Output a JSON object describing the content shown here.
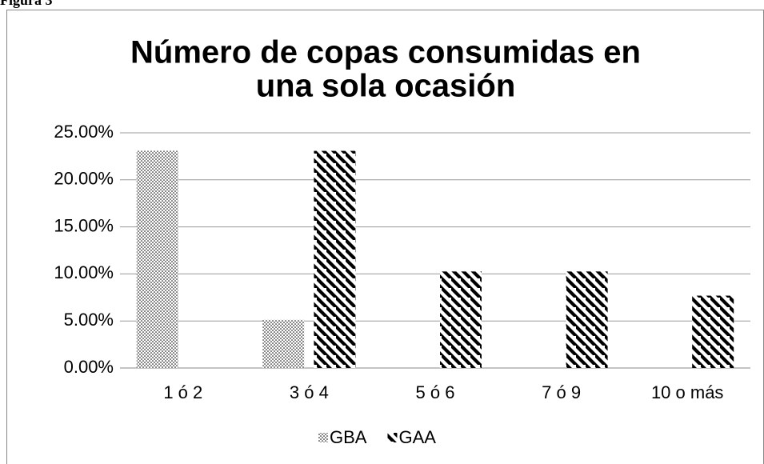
{
  "figure_label": "Figura 3",
  "chart_data": {
    "type": "bar",
    "title": [
      "Número de copas consumidas en",
      "una sola ocasión"
    ],
    "categories": [
      "1 ó 2",
      "3 ó 4",
      "5 ó 6",
      "7 ó 9",
      "10 o más"
    ],
    "series": [
      {
        "name": "GBA",
        "color": "#000000",
        "pattern": "dots",
        "values": [
          23.08,
          5.13,
          0,
          0,
          0
        ]
      },
      {
        "name": "GAA",
        "color": "#000000",
        "pattern": "stripes",
        "values": [
          0,
          23.08,
          10.26,
          10.26,
          7.69
        ]
      }
    ],
    "ylim": [
      0,
      25
    ],
    "yticks": [
      {
        "value": 0,
        "label": "0.00%"
      },
      {
        "value": 5,
        "label": "5.00%"
      },
      {
        "value": 10,
        "label": "10.00%"
      },
      {
        "value": 15,
        "label": "15.00%"
      },
      {
        "value": 20,
        "label": "20.00%"
      },
      {
        "value": 25,
        "label": "25.00%"
      }
    ],
    "grid": true,
    "legend": "bottom"
  }
}
